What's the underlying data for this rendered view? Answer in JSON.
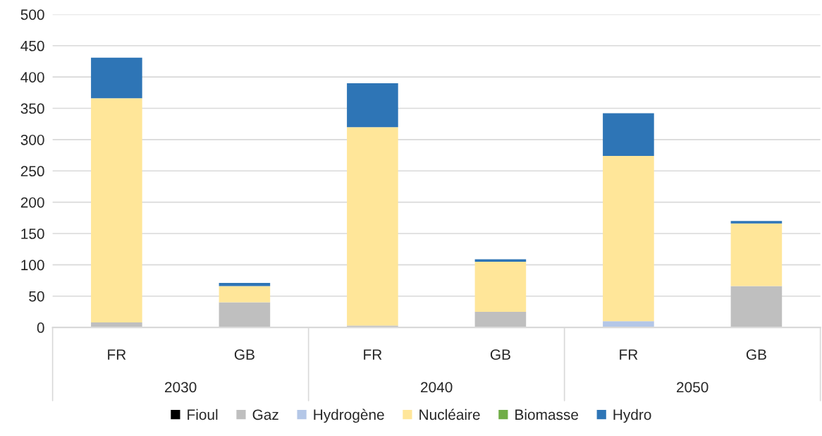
{
  "chart_data": {
    "type": "bar",
    "stacked": true,
    "categories": [
      "FR",
      "GB",
      "FR",
      "GB",
      "FR",
      "GB"
    ],
    "annotations": [
      "2030",
      "2040",
      "2050"
    ],
    "series": [
      {
        "name": "Fioul",
        "color": "#000000",
        "values": [
          0,
          0,
          0,
          0,
          0,
          0
        ]
      },
      {
        "name": "Gaz",
        "color": "#bfbfbf",
        "values": [
          8,
          40,
          3,
          25,
          1,
          66
        ]
      },
      {
        "name": "Hydrogène",
        "color": "#b4c7e7",
        "values": [
          0,
          0,
          0,
          0,
          9,
          0
        ]
      },
      {
        "name": "Nucléaire",
        "color": "#ffe699",
        "values": [
          358,
          26,
          317,
          80,
          264,
          100
        ]
      },
      {
        "name": "Biomasse",
        "color": "#70ad47",
        "values": [
          0,
          0,
          0,
          0,
          0,
          0
        ]
      },
      {
        "name": "Hydro",
        "color": "#2e75b6",
        "values": [
          65,
          5,
          70,
          4,
          68,
          4
        ]
      }
    ],
    "ylim": [
      0,
      500
    ],
    "yticks": [
      0,
      50,
      100,
      150,
      200,
      250,
      300,
      350,
      400,
      450,
      500
    ],
    "grid": "y",
    "legend": "bottom"
  }
}
